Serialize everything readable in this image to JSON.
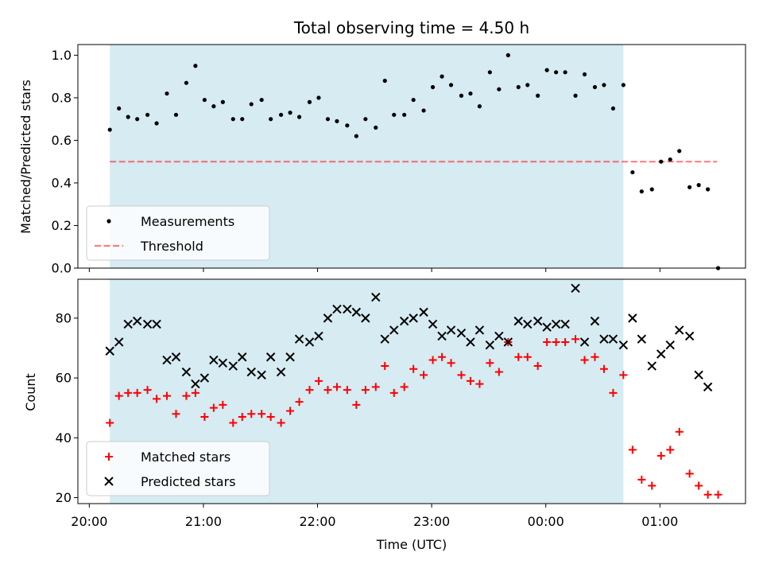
{
  "title": "Total observing time = 4.50 h",
  "colors": {
    "span": "#add8e6",
    "threshold": "#ff0000",
    "measurements": "#000000",
    "matched": "#ff0000",
    "predicted": "#000000"
  },
  "chart_data": [
    {
      "type": "scatter",
      "ylabel": "Matched/Predicted stars",
      "xlim": [
        -0.1,
        5.75
      ],
      "ylim": [
        0,
        1.05
      ],
      "yticks": [
        0.0,
        0.2,
        0.4,
        0.6,
        0.8,
        1.0
      ],
      "ytick_labels": [
        "0.0",
        "0.2",
        "0.4",
        "0.6",
        "0.8",
        "1.0"
      ],
      "observing_span": [
        0.18,
        4.68
      ],
      "threshold": {
        "value": 0.5,
        "x": [
          0.18,
          5.5
        ]
      },
      "legend": {
        "position": "lower-left",
        "items": [
          "Measurements",
          "Threshold"
        ]
      },
      "series": [
        {
          "name": "Measurements",
          "x": [
            0.18,
            0.26,
            0.34,
            0.42,
            0.51,
            0.59,
            0.68,
            0.76,
            0.85,
            0.93,
            1.01,
            1.09,
            1.17,
            1.26,
            1.34,
            1.42,
            1.51,
            1.59,
            1.68,
            1.76,
            1.84,
            1.93,
            2.01,
            2.09,
            2.17,
            2.26,
            2.34,
            2.42,
            2.51,
            2.59,
            2.67,
            2.76,
            2.84,
            2.93,
            3.01,
            3.09,
            3.17,
            3.26,
            3.34,
            3.42,
            3.51,
            3.59,
            3.67,
            3.76,
            3.84,
            3.93,
            4.01,
            4.09,
            4.17,
            4.26,
            4.34,
            4.43,
            4.51,
            4.59,
            4.68,
            4.76,
            4.84,
            4.93,
            5.01,
            5.09,
            5.17,
            5.26,
            5.34,
            5.42,
            5.51
          ],
          "y": [
            0.65,
            0.75,
            0.71,
            0.7,
            0.72,
            0.68,
            0.82,
            0.72,
            0.87,
            0.95,
            0.79,
            0.76,
            0.78,
            0.7,
            0.7,
            0.77,
            0.79,
            0.7,
            0.72,
            0.73,
            0.71,
            0.78,
            0.8,
            0.7,
            0.69,
            0.67,
            0.62,
            0.7,
            0.66,
            0.88,
            0.72,
            0.72,
            0.79,
            0.74,
            0.85,
            0.9,
            0.86,
            0.81,
            0.82,
            0.76,
            0.92,
            0.84,
            1.0,
            0.85,
            0.86,
            0.81,
            0.93,
            0.92,
            0.92,
            0.81,
            0.91,
            0.85,
            0.86,
            0.75,
            0.86,
            0.45,
            0.36,
            0.37,
            0.5,
            0.51,
            0.55,
            0.38,
            0.39,
            0.37,
            0.0
          ]
        }
      ]
    },
    {
      "type": "scatter",
      "xlabel": "Time (UTC)",
      "ylabel": "Count",
      "xlim": [
        -0.1,
        5.75
      ],
      "ylim": [
        18,
        93
      ],
      "yticks": [
        20,
        40,
        60,
        80
      ],
      "ytick_labels": [
        "20",
        "40",
        "60",
        "80"
      ],
      "xticks": [
        0,
        1,
        2,
        3,
        4,
        5
      ],
      "xtick_labels": [
        "20:00",
        "21:00",
        "22:00",
        "23:00",
        "00:00",
        "01:00"
      ],
      "observing_span": [
        0.18,
        4.68
      ],
      "legend": {
        "position": "lower-left",
        "items": [
          "Matched stars",
          "Predicted stars"
        ]
      },
      "series": [
        {
          "name": "Matched stars",
          "x": [
            0.18,
            0.26,
            0.34,
            0.42,
            0.51,
            0.59,
            0.68,
            0.76,
            0.85,
            0.93,
            1.01,
            1.09,
            1.17,
            1.26,
            1.34,
            1.42,
            1.51,
            1.59,
            1.68,
            1.76,
            1.84,
            1.93,
            2.01,
            2.09,
            2.17,
            2.26,
            2.34,
            2.42,
            2.51,
            2.59,
            2.67,
            2.76,
            2.84,
            2.93,
            3.01,
            3.09,
            3.17,
            3.26,
            3.34,
            3.42,
            3.51,
            3.59,
            3.67,
            3.76,
            3.84,
            3.93,
            4.01,
            4.09,
            4.17,
            4.26,
            4.34,
            4.43,
            4.51,
            4.59,
            4.68,
            4.76,
            4.84,
            4.93,
            5.01,
            5.09,
            5.17,
            5.26,
            5.34,
            5.42,
            5.51
          ],
          "y": [
            45,
            54,
            55,
            55,
            56,
            53,
            54,
            48,
            54,
            55,
            47,
            50,
            51,
            45,
            47,
            48,
            48,
            47,
            45,
            49,
            52,
            56,
            59,
            56,
            57,
            56,
            51,
            56,
            57,
            64,
            55,
            57,
            63,
            61,
            66,
            67,
            65,
            61,
            59,
            58,
            65,
            62,
            72,
            67,
            67,
            64,
            72,
            72,
            72,
            73,
            66,
            67,
            63,
            55,
            61,
            36,
            26,
            24,
            34,
            36,
            42,
            28,
            24,
            21,
            21
          ]
        },
        {
          "name": "Predicted stars",
          "x": [
            0.18,
            0.26,
            0.34,
            0.42,
            0.51,
            0.59,
            0.68,
            0.76,
            0.85,
            0.93,
            1.01,
            1.09,
            1.17,
            1.26,
            1.34,
            1.42,
            1.51,
            1.59,
            1.68,
            1.76,
            1.84,
            1.93,
            2.01,
            2.09,
            2.17,
            2.26,
            2.34,
            2.42,
            2.51,
            2.59,
            2.67,
            2.76,
            2.84,
            2.93,
            3.01,
            3.09,
            3.17,
            3.26,
            3.34,
            3.42,
            3.51,
            3.59,
            3.67,
            3.76,
            3.84,
            3.93,
            4.01,
            4.09,
            4.17,
            4.26,
            4.34,
            4.43,
            4.51,
            4.59,
            4.68,
            4.76,
            4.84,
            4.93,
            5.01,
            5.09,
            5.17,
            5.26,
            5.34,
            5.42
          ],
          "y": [
            69,
            72,
            78,
            79,
            78,
            78,
            66,
            67,
            62,
            58,
            60,
            66,
            65,
            64,
            67,
            62,
            61,
            67,
            62,
            67,
            73,
            72,
            74,
            80,
            83,
            83,
            82,
            80,
            87,
            73,
            76,
            79,
            80,
            82,
            78,
            74,
            76,
            75,
            72,
            76,
            71,
            74,
            72,
            79,
            78,
            79,
            77,
            78,
            78,
            90,
            72,
            79,
            73,
            73,
            71,
            80,
            73,
            64,
            68,
            71,
            76,
            74,
            61,
            57
          ]
        }
      ]
    }
  ]
}
